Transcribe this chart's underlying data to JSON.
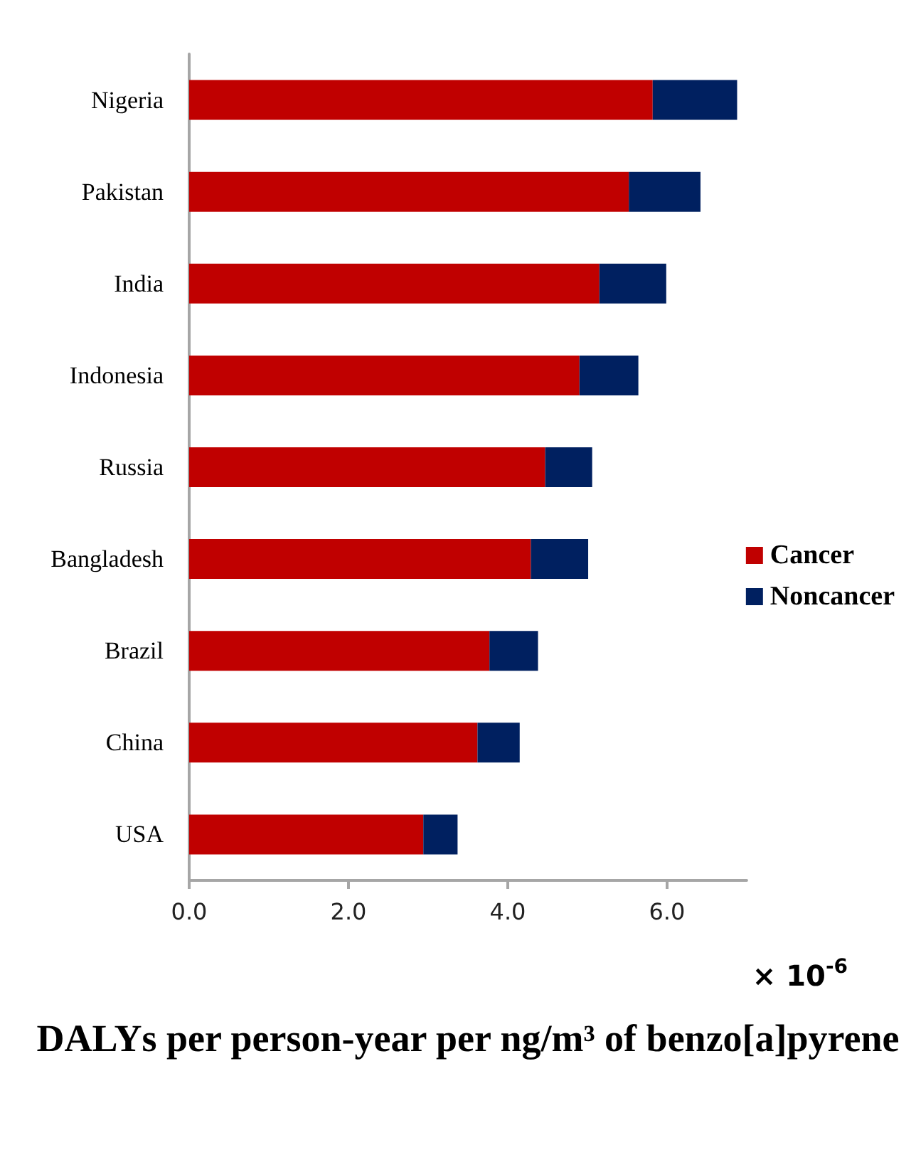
{
  "chart_data": {
    "type": "bar",
    "orientation": "horizontal",
    "stacked": true,
    "categories": [
      "Nigeria",
      "Pakistan",
      "India",
      "Indonesia",
      "Russia",
      "Bangladesh",
      "Brazil",
      "China",
      "USA"
    ],
    "series": [
      {
        "name": "Cancer",
        "color": "#c00000",
        "values": [
          5.82,
          5.52,
          5.15,
          4.9,
          4.47,
          4.29,
          3.77,
          3.62,
          2.94
        ]
      },
      {
        "name": "Noncancer",
        "color": "#002060",
        "values": [
          1.06,
          0.9,
          0.84,
          0.74,
          0.59,
          0.72,
          0.61,
          0.53,
          0.43
        ]
      }
    ],
    "xlim": [
      0,
      7
    ],
    "xticks": [
      {
        "value": 0,
        "label": "0.0"
      },
      {
        "value": 2,
        "label": "2.0"
      },
      {
        "value": 4,
        "label": "4.0"
      },
      {
        "value": 6,
        "label": "6.0"
      }
    ],
    "xlabel": "DALYs per person-year per ng/m³ of benzo[a]pyrene",
    "annotations": [
      "× 10$^{-6}$"
    ],
    "legend": "right",
    "grid": false
  }
}
